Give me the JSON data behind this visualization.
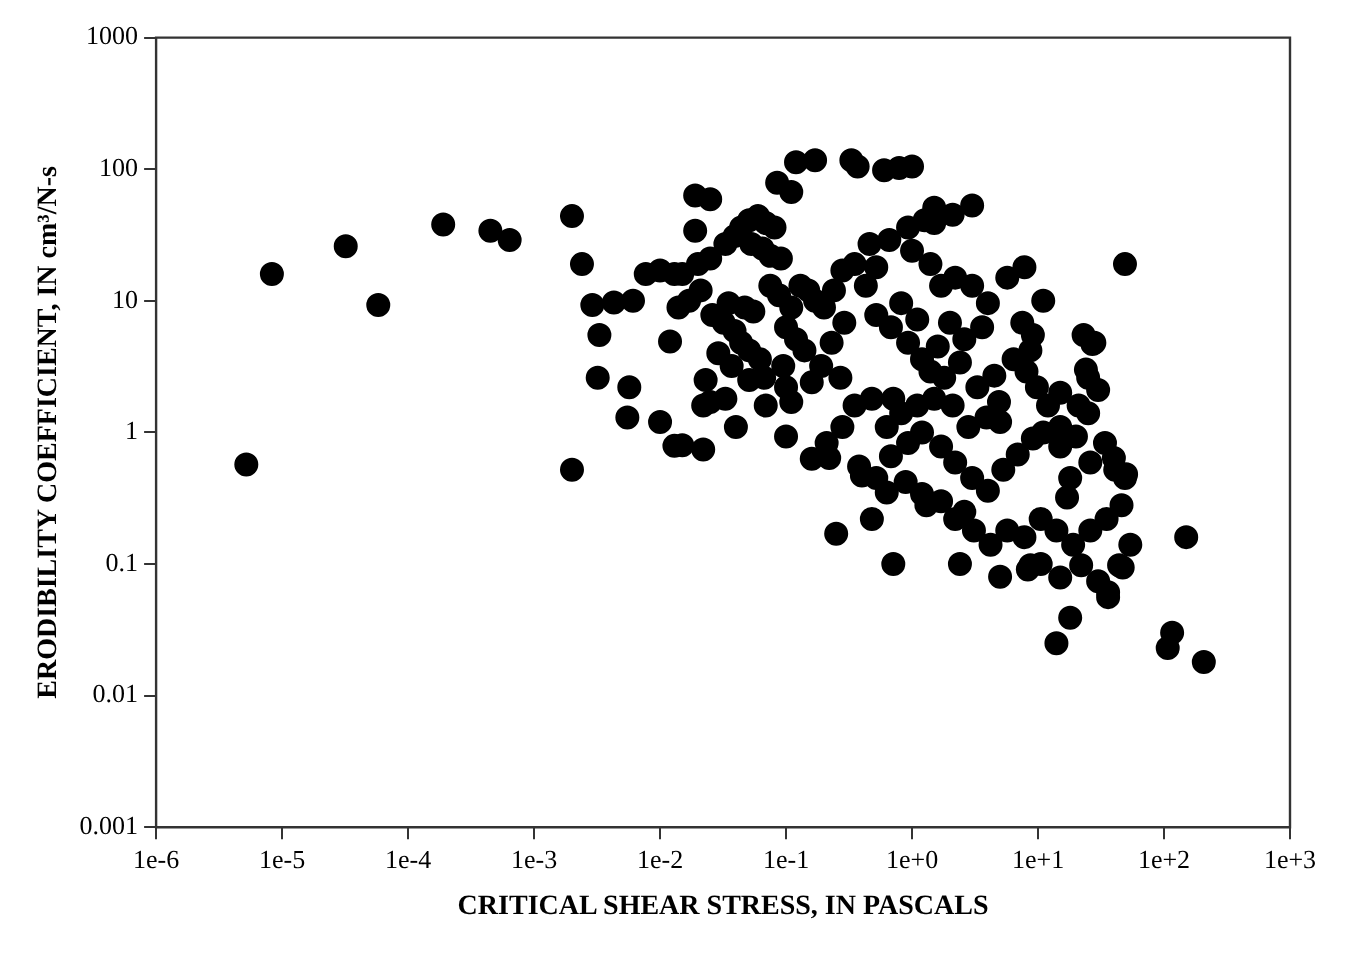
{
  "chart_data": {
    "type": "scatter",
    "xlabel": "CRITICAL SHEAR STRESS, IN PASCALS",
    "ylabel": "ERODIBILITY COEFFICIENT, IN cm³/N-s",
    "color": "#000000",
    "marker": "circle",
    "log": "xy",
    "xlim": [
      1e-06,
      1000
    ],
    "ylim": [
      0.001,
      1000
    ],
    "xticks": [
      {
        "value": 1e-06,
        "label": "1e-6"
      },
      {
        "value": 1e-05,
        "label": "1e-5"
      },
      {
        "value": 0.0001,
        "label": "1e-4"
      },
      {
        "value": 0.001,
        "label": "1e-3"
      },
      {
        "value": 0.01,
        "label": "1e-2"
      },
      {
        "value": 0.1,
        "label": "1e-1"
      },
      {
        "value": 1,
        "label": "1e+0"
      },
      {
        "value": 10,
        "label": "1e+1"
      },
      {
        "value": 100,
        "label": "1e+2"
      },
      {
        "value": 1000,
        "label": "1e+3"
      }
    ],
    "yticks": [
      0.001,
      0.01,
      0.1,
      1,
      10,
      100,
      1000
    ],
    "x": [
      5.2e-06,
      8.3e-06,
      3.2e-05,
      5.8e-05,
      0.00019,
      0.00045,
      0.00064,
      0.002,
      0.0024,
      0.002,
      0.0033,
      0.0032,
      0.0057,
      0.0055,
      0.01,
      0.0077,
      0.01,
      0.012,
      0.013,
      0.0029,
      0.0043,
      0.0061,
      0.015,
      0.022,
      0.025,
      0.04,
      0.1,
      0.22,
      0.4,
      0.085,
      0.11,
      0.12,
      0.17,
      0.33,
      0.37,
      0.6,
      0.79,
      1.0,
      3.0,
      2.1,
      1.5,
      27,
      24,
      30,
      25,
      20,
      15,
      50,
      40,
      49,
      0.25,
      0.71,
      2.4,
      5.0,
      8.3,
      36,
      18,
      14,
      47,
      1.3,
      2.6,
      116,
      107,
      150,
      207,
      0.019,
      0.025,
      0.019,
      0.013,
      0.015,
      0.02,
      0.025,
      0.033,
      0.039,
      0.044,
      0.051,
      0.06,
      0.069,
      0.081,
      0.053,
      0.065,
      0.075,
      0.091,
      0.021,
      0.017,
      0.014,
      0.026,
      0.032,
      0.039,
      0.044,
      0.051,
      0.062,
      0.035,
      0.047,
      0.055,
      0.075,
      0.088,
      0.11,
      0.13,
      0.15,
      0.17,
      0.2,
      0.1,
      0.12,
      0.14,
      0.095,
      0.067,
      0.1,
      0.029,
      0.037,
      0.051,
      0.023,
      0.022,
      0.033,
      0.069,
      0.11,
      0.16,
      0.19,
      0.23,
      0.29,
      0.24,
      0.28,
      0.35,
      0.43,
      0.52,
      0.46,
      0.66,
      0.93,
      1.26,
      1.5,
      1.0,
      1.4,
      1.7,
      2.2,
      3.0,
      4.0,
      5.7,
      7.8,
      7.5,
      9.1,
      3.6,
      2.6,
      2.0,
      1.6,
      1.2,
      0.93,
      0.68,
      0.52,
      0.82,
      1.1,
      1.4,
      1.8,
      2.4,
      3.3,
      4.5,
      6.4,
      8.1,
      9.8,
      12,
      15,
      4.9,
      3.9,
      2.8,
      2.1,
      1.5,
      1.1,
      0.82,
      0.63,
      0.48,
      0.35,
      0.28,
      0.21,
      0.16,
      0.38,
      0.52,
      0.48,
      0.68,
      0.93,
      1.2,
      1.7,
      2.2,
      3.0,
      4.0,
      5.3,
      6.9,
      9.1,
      11,
      15,
      18,
      26,
      34,
      41,
      46,
      35,
      26,
      19,
      14,
      10.5,
      7.8,
      5.7,
      4.2,
      3.1,
      2.2,
      1.7,
      1.2,
      0.89,
      10.5,
      15,
      22,
      30,
      36,
      44,
      54,
      49,
      8.7,
      17,
      21,
      25,
      28,
      23,
      11,
      8.7,
      5.0,
      0.63,
      0.71,
      0.27
    ],
    "values": [
      0.57,
      16,
      26,
      9.3,
      38,
      34,
      29,
      44,
      19,
      0.52,
      5.5,
      2.6,
      2.2,
      1.3,
      1.2,
      16,
      17,
      4.9,
      0.79,
      9.3,
      9.7,
      10,
      0.8,
      0.74,
      1.7,
      1.1,
      0.93,
      0.64,
      0.47,
      79,
      67,
      113,
      117,
      117,
      105,
      98,
      102,
      105,
      53,
      45,
      39,
      4.7,
      3.0,
      2.1,
      1.4,
      0.93,
      2.0,
      0.48,
      0.64,
      19,
      0.17,
      0.1,
      0.1,
      0.08,
      0.091,
      0.061,
      0.039,
      0.025,
      0.094,
      0.28,
      0.25,
      0.03,
      0.023,
      0.16,
      0.018,
      63,
      59,
      34,
      16,
      16,
      19,
      21,
      27,
      31,
      36,
      41,
      44,
      39,
      36,
      27,
      25,
      22,
      21,
      12,
      10,
      8.9,
      7.8,
      6.8,
      5.9,
      4.8,
      4.2,
      3.6,
      9.6,
      8.9,
      8.3,
      13,
      11,
      8.9,
      13,
      12,
      10,
      8.9,
      6.3,
      5.1,
      4.2,
      3.2,
      2.6,
      2.2,
      4.0,
      3.2,
      2.5,
      2.5,
      1.6,
      1.8,
      1.6,
      1.7,
      2.4,
      3.2,
      4.8,
      6.8,
      12,
      17,
      19,
      13,
      18,
      27,
      29,
      36,
      41,
      51,
      24,
      19,
      13,
      15,
      13,
      9.6,
      15,
      18,
      6.8,
      5.5,
      6.3,
      5.1,
      6.8,
      4.5,
      3.6,
      4.8,
      6.3,
      7.8,
      9.6,
      7.2,
      2.9,
      2.6,
      3.4,
      2.2,
      2.7,
      3.6,
      2.9,
      2.2,
      1.6,
      1.1,
      1.7,
      1.3,
      1.1,
      1.6,
      1.8,
      1.6,
      1.4,
      1.1,
      1.8,
      1.6,
      1.1,
      0.83,
      0.63,
      0.55,
      0.45,
      0.22,
      0.66,
      0.83,
      1.0,
      0.78,
      0.59,
      0.45,
      0.36,
      0.52,
      0.68,
      0.9,
      1.0,
      0.78,
      0.45,
      0.59,
      0.83,
      0.52,
      0.28,
      0.22,
      0.18,
      0.14,
      0.18,
      0.22,
      0.16,
      0.18,
      0.14,
      0.18,
      0.22,
      0.3,
      0.34,
      0.42,
      0.1,
      0.079,
      0.098,
      0.074,
      0.056,
      0.098,
      0.14,
      0.45,
      0.098,
      0.32,
      1.6,
      2.6,
      4.8,
      5.5,
      10,
      4.2,
      1.2,
      0.35,
      1.8,
      2.6
    ]
  }
}
